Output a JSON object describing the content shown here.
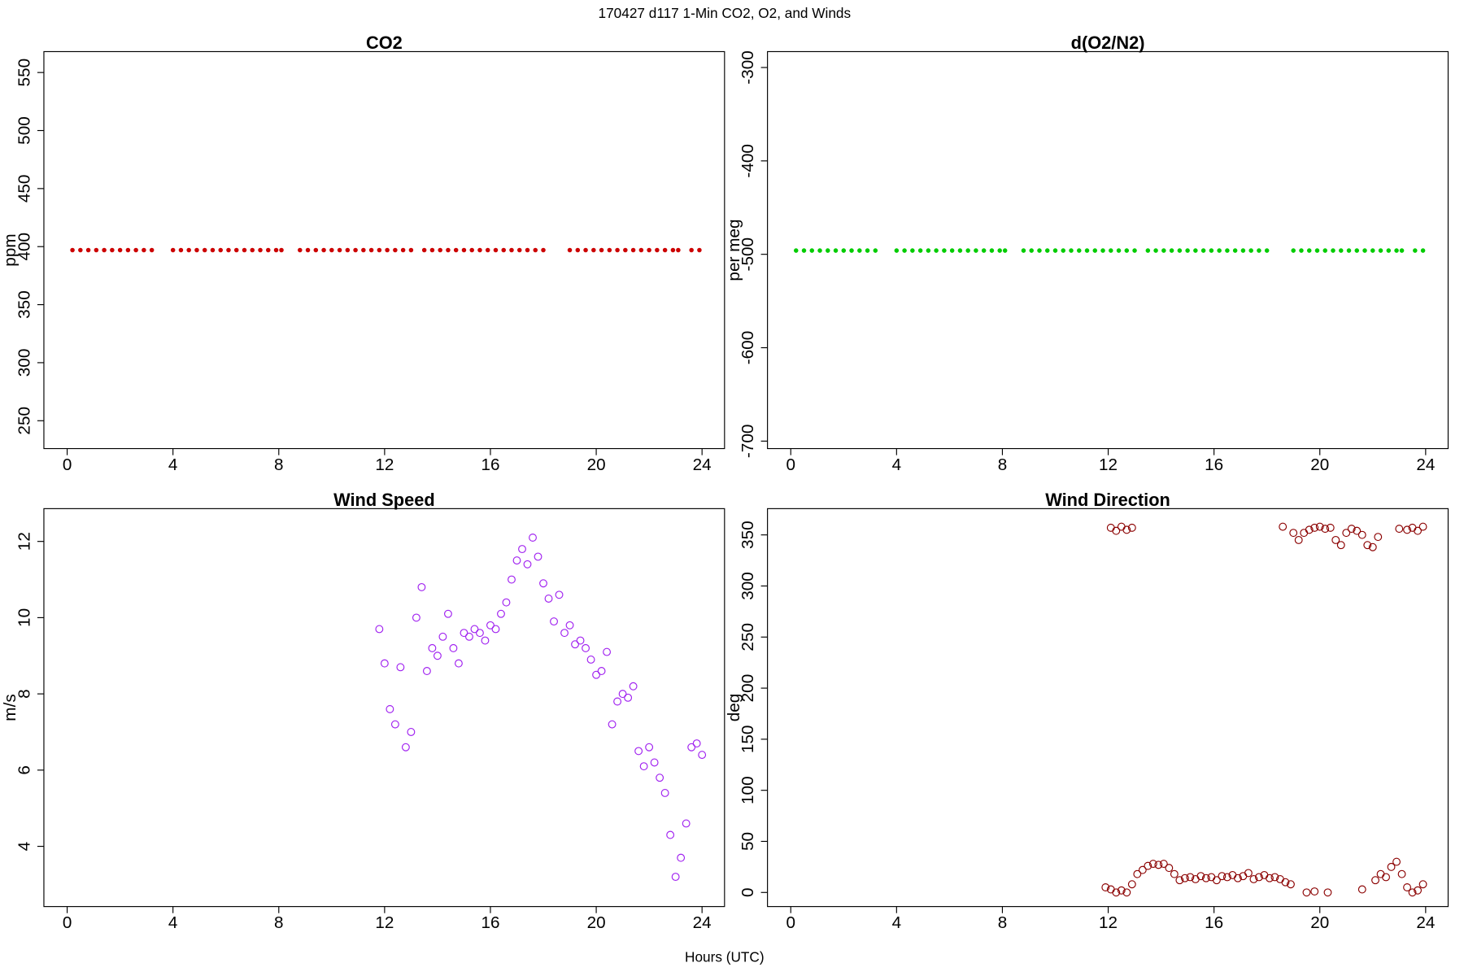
{
  "figure": {
    "title": "170427   d117   1-Min CO2, O2, and Winds",
    "xlabel": "Hours (UTC)"
  },
  "chart_data": [
    {
      "type": "scatter",
      "title": "CO2",
      "ylabel": "ppm",
      "color": "#cc0000",
      "marker": "dot",
      "xlim": [
        -0.88,
        24.85
      ],
      "ylim": [
        226,
        568
      ],
      "xticks": [
        0,
        4,
        8,
        12,
        16,
        20,
        24
      ],
      "yticks": [
        250,
        300,
        350,
        400,
        450,
        500,
        550
      ],
      "x": [
        0.2,
        0.5,
        0.8,
        1.1,
        1.4,
        1.7,
        2.0,
        2.3,
        2.6,
        2.9,
        3.2,
        4.0,
        4.3,
        4.6,
        4.9,
        5.2,
        5.5,
        5.8,
        6.1,
        6.4,
        6.7,
        7.0,
        7.3,
        7.6,
        7.9,
        8.1,
        8.8,
        9.1,
        9.4,
        9.7,
        10.0,
        10.3,
        10.6,
        10.9,
        11.2,
        11.5,
        11.8,
        12.1,
        12.4,
        12.7,
        13.0,
        13.5,
        13.8,
        14.1,
        14.4,
        14.7,
        15.0,
        15.3,
        15.6,
        15.9,
        16.2,
        16.5,
        16.8,
        17.1,
        17.4,
        17.7,
        18.0,
        19.0,
        19.3,
        19.6,
        19.9,
        20.2,
        20.5,
        20.8,
        21.1,
        21.4,
        21.7,
        22.0,
        22.3,
        22.6,
        22.9,
        23.1,
        23.6,
        23.9
      ],
      "values": [
        397,
        397,
        397,
        397,
        397,
        397,
        397,
        397,
        397,
        397,
        397,
        397,
        397,
        397,
        397,
        397,
        397,
        397,
        397,
        397,
        397,
        397,
        397,
        397,
        397,
        397,
        397,
        397,
        397,
        397,
        397,
        397,
        397,
        397,
        397,
        397,
        397,
        397,
        397,
        397,
        397,
        397,
        397,
        397,
        397,
        397,
        397,
        397,
        397,
        397,
        397,
        397,
        397,
        397,
        397,
        397,
        397,
        397,
        397,
        397,
        397,
        397,
        397,
        397,
        397,
        397,
        397,
        397,
        397,
        397,
        397,
        397,
        397,
        397
      ]
    },
    {
      "type": "scatter",
      "title": "d(O2/N2)",
      "ylabel": "per meg",
      "color": "#00cc00",
      "marker": "dot",
      "xlim": [
        -0.88,
        24.85
      ],
      "ylim": [
        -708,
        -283
      ],
      "xticks": [
        0,
        4,
        8,
        12,
        16,
        20,
        24
      ],
      "yticks": [
        -700,
        -600,
        -500,
        -400,
        -300
      ],
      "x": [
        0.2,
        0.5,
        0.8,
        1.1,
        1.4,
        1.7,
        2.0,
        2.3,
        2.6,
        2.9,
        3.2,
        4.0,
        4.3,
        4.6,
        4.9,
        5.2,
        5.5,
        5.8,
        6.1,
        6.4,
        6.7,
        7.0,
        7.3,
        7.6,
        7.9,
        8.1,
        8.8,
        9.1,
        9.4,
        9.7,
        10.0,
        10.3,
        10.6,
        10.9,
        11.2,
        11.5,
        11.8,
        12.1,
        12.4,
        12.7,
        13.0,
        13.5,
        13.8,
        14.1,
        14.4,
        14.7,
        15.0,
        15.3,
        15.6,
        15.9,
        16.2,
        16.5,
        16.8,
        17.1,
        17.4,
        17.7,
        18.0,
        19.0,
        19.3,
        19.6,
        19.9,
        20.2,
        20.5,
        20.8,
        21.1,
        21.4,
        21.7,
        22.0,
        22.3,
        22.6,
        22.9,
        23.1,
        23.6,
        23.9
      ],
      "values": [
        -496,
        -496,
        -496,
        -496,
        -496,
        -496,
        -496,
        -496,
        -496,
        -496,
        -496,
        -496,
        -496,
        -496,
        -496,
        -496,
        -496,
        -496,
        -496,
        -496,
        -496,
        -496,
        -496,
        -496,
        -496,
        -496,
        -496,
        -496,
        -496,
        -496,
        -496,
        -496,
        -496,
        -496,
        -496,
        -496,
        -496,
        -496,
        -496,
        -496,
        -496,
        -496,
        -496,
        -496,
        -496,
        -496,
        -496,
        -496,
        -496,
        -496,
        -496,
        -496,
        -496,
        -496,
        -496,
        -496,
        -496,
        -496,
        -496,
        -496,
        -496,
        -496,
        -496,
        -496,
        -496,
        -496,
        -496,
        -496,
        -496,
        -496,
        -496,
        -496,
        -496,
        -496
      ]
    },
    {
      "type": "scatter",
      "title": "Wind Speed",
      "ylabel": "m/s",
      "color": "#a020f0",
      "marker": "ring",
      "xlim": [
        -0.88,
        24.85
      ],
      "ylim": [
        2.42,
        12.86
      ],
      "xticks": [
        0,
        4,
        8,
        12,
        16,
        20,
        24
      ],
      "yticks": [
        4,
        6,
        8,
        10,
        12
      ],
      "x": [
        11.8,
        12.0,
        12.2,
        12.4,
        12.6,
        12.8,
        13.0,
        13.2,
        13.4,
        13.6,
        13.8,
        14.0,
        14.2,
        14.4,
        14.6,
        14.8,
        15.0,
        15.2,
        15.4,
        15.6,
        15.8,
        16.0,
        16.2,
        16.4,
        16.6,
        16.8,
        17.0,
        17.2,
        17.4,
        17.6,
        17.8,
        18.0,
        18.2,
        18.4,
        18.6,
        18.8,
        19.0,
        19.2,
        19.4,
        19.6,
        19.8,
        20.0,
        20.2,
        20.4,
        20.6,
        20.8,
        21.0,
        21.2,
        21.4,
        21.6,
        21.8,
        22.0,
        22.2,
        22.4,
        22.6,
        22.8,
        23.0,
        23.2,
        23.4,
        23.6,
        23.8,
        24.0
      ],
      "values": [
        9.7,
        8.8,
        7.6,
        7.2,
        8.7,
        6.6,
        7.0,
        10.0,
        10.8,
        8.6,
        9.2,
        9.0,
        9.5,
        10.1,
        9.2,
        8.8,
        9.6,
        9.5,
        9.7,
        9.6,
        9.4,
        9.8,
        9.7,
        10.1,
        10.4,
        11.0,
        11.5,
        11.8,
        11.4,
        12.1,
        11.6,
        10.9,
        10.5,
        9.9,
        10.6,
        9.6,
        9.8,
        9.3,
        9.4,
        9.2,
        8.9,
        8.5,
        8.6,
        9.1,
        7.2,
        7.8,
        8.0,
        7.9,
        8.2,
        6.5,
        6.1,
        6.6,
        6.2,
        5.8,
        5.4,
        4.3,
        3.2,
        3.7,
        4.6,
        6.6,
        6.7,
        6.4
      ]
    },
    {
      "type": "scatter",
      "title": "Wind Direction",
      "ylabel": "deg",
      "color": "#8b0000",
      "marker": "ring",
      "xlim": [
        -0.88,
        24.85
      ],
      "ylim": [
        -13.8,
        375.7
      ],
      "xticks": [
        0,
        4,
        8,
        12,
        16,
        20,
        24
      ],
      "yticks": [
        0,
        50,
        100,
        150,
        200,
        250,
        300,
        350
      ],
      "x": [
        11.9,
        12.1,
        12.3,
        12.5,
        12.7,
        12.9,
        13.1,
        13.3,
        13.5,
        13.7,
        13.9,
        14.1,
        14.3,
        14.5,
        14.7,
        14.9,
        15.1,
        15.3,
        15.5,
        15.7,
        15.9,
        16.1,
        16.3,
        16.5,
        16.7,
        16.9,
        17.1,
        17.3,
        17.5,
        17.7,
        17.9,
        18.1,
        18.3,
        18.5,
        18.7,
        18.9,
        19.5,
        19.8,
        20.3,
        21.6,
        22.1,
        22.3,
        22.5,
        22.7,
        22.9,
        23.1,
        23.3,
        23.5,
        23.7,
        23.9,
        12.1,
        12.3,
        12.5,
        12.7,
        12.9,
        18.6,
        19.0,
        19.2,
        19.4,
        19.6,
        19.8,
        20.0,
        20.2,
        20.4,
        20.6,
        20.8,
        21.0,
        21.2,
        21.4,
        21.6,
        21.8,
        22.0,
        22.2,
        23.0,
        23.3,
        23.5,
        23.7,
        23.9
      ],
      "values": [
        5,
        3,
        0,
        2,
        0,
        8,
        18,
        22,
        26,
        28,
        27,
        28,
        24,
        18,
        12,
        14,
        15,
        13,
        16,
        14,
        15,
        12,
        16,
        15,
        17,
        14,
        16,
        19,
        13,
        15,
        17,
        14,
        15,
        13,
        10,
        8,
        0,
        1,
        0,
        3,
        12,
        18,
        15,
        25,
        30,
        18,
        5,
        0,
        2,
        8,
        357,
        354,
        358,
        355,
        357,
        358,
        352,
        345,
        352,
        355,
        357,
        358,
        356,
        357,
        345,
        340,
        352,
        356,
        354,
        350,
        340,
        338,
        348,
        356,
        355,
        357,
        354,
        358
      ]
    }
  ]
}
